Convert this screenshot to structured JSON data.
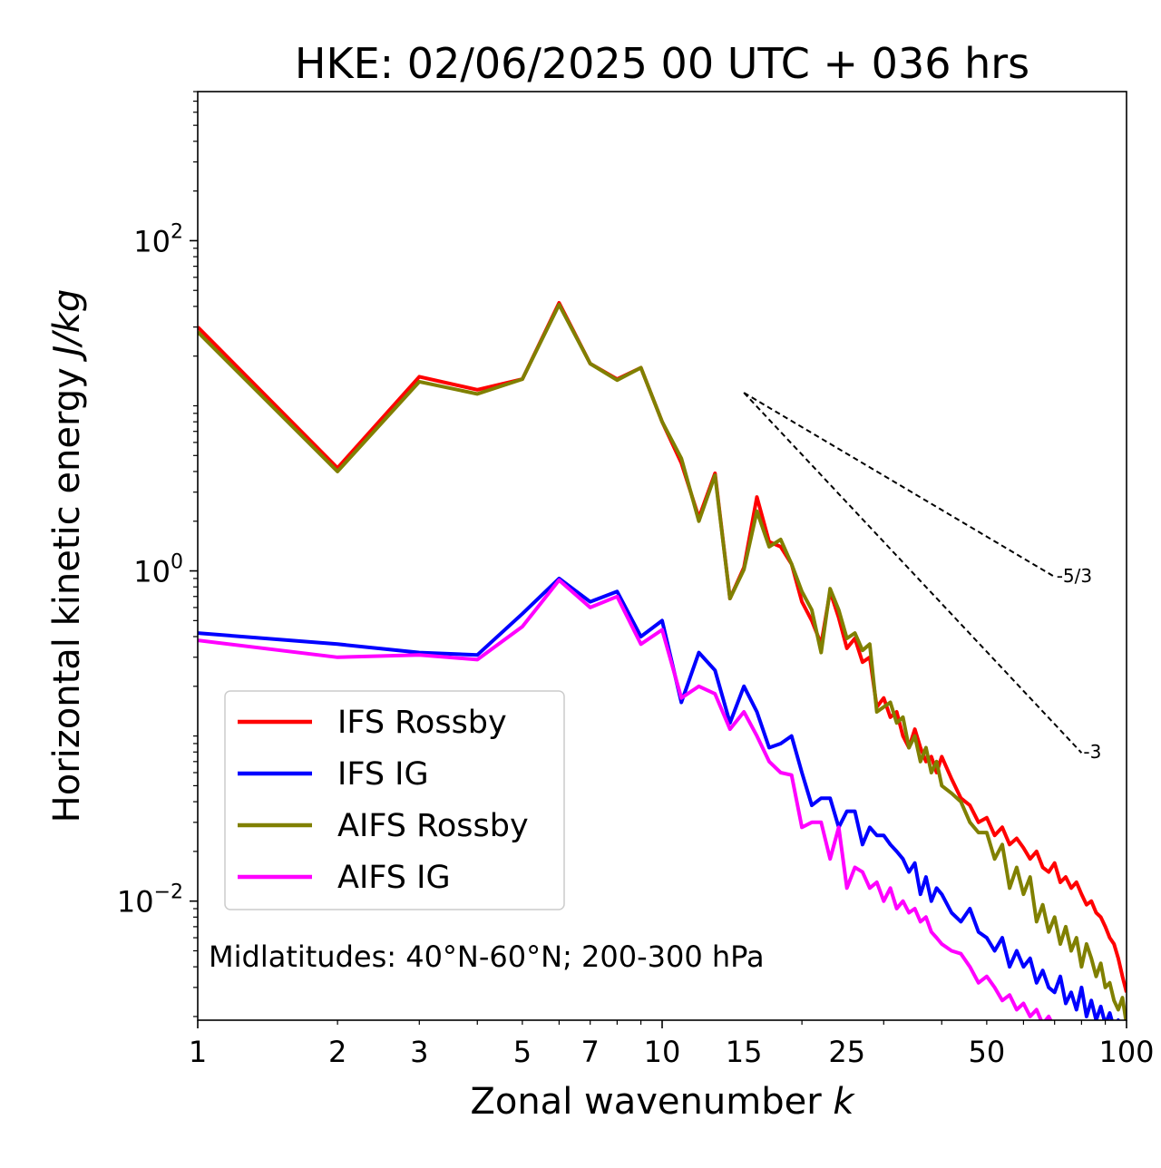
{
  "chart_data": {
    "type": "line",
    "title": "HKE: 02/06/2025 00 UTC + 036 hrs",
    "xlabel_main": "Zonal wavenumber ",
    "xlabel_var": "k",
    "ylabel_main": "Horizontal kinetic energy ",
    "ylabel_unit": "J/kg",
    "xscale": "log",
    "yscale": "log",
    "xlim": [
      1,
      100
    ],
    "ylim": [
      0.0019,
      800
    ],
    "xticks": [
      1,
      2,
      3,
      5,
      7,
      10,
      15,
      25,
      50,
      100
    ],
    "xtick_labels": [
      "1",
      "2",
      "3",
      "5",
      "7",
      "10",
      "15",
      "25",
      "50",
      "100"
    ],
    "yticks": [
      {
        "value": 0.01,
        "base": "10",
        "exp": "−2"
      },
      {
        "value": 1,
        "base": "10",
        "exp": "0"
      },
      {
        "value": 100,
        "base": "10",
        "exp": "2"
      }
    ],
    "annotation": "Midlatitudes: 40°N-60°N; 200-300 hPa",
    "legend_position": "lower-left",
    "reference_slopes": [
      {
        "label": "-5/3",
        "slope": -1.6667,
        "x_start": 15,
        "y_start": 12.0,
        "x_end": 70
      },
      {
        "label": "-3",
        "slope": -3,
        "x_start": 15,
        "y_start": 12.0,
        "x_end": 80
      }
    ],
    "series": [
      {
        "name": "IFS Rossby",
        "color": "#ff0000",
        "x": [
          1,
          2,
          3,
          4,
          5,
          6,
          7,
          8,
          9,
          10,
          11,
          12,
          13,
          14,
          15,
          16,
          17,
          18,
          19,
          20,
          21,
          22,
          23,
          24,
          25,
          26,
          27,
          28,
          29,
          30,
          31,
          32,
          33,
          34,
          35,
          36,
          37,
          38,
          39,
          40,
          42,
          44,
          46,
          48,
          50,
          52,
          54,
          56,
          58,
          60,
          62,
          64,
          66,
          68,
          70,
          72,
          74,
          76,
          78,
          80,
          82,
          84,
          86,
          88,
          90,
          92,
          94,
          96,
          98,
          100
        ],
        "y": [
          30,
          4.2,
          15,
          12.5,
          14.5,
          42,
          18,
          14.5,
          17,
          8,
          4.5,
          2.1,
          3.9,
          0.68,
          1.05,
          2.8,
          1.5,
          1.4,
          1.1,
          0.65,
          0.5,
          0.36,
          0.75,
          0.52,
          0.34,
          0.39,
          0.28,
          0.3,
          0.15,
          0.17,
          0.13,
          0.14,
          0.1,
          0.085,
          0.11,
          0.085,
          0.07,
          0.075,
          0.06,
          0.075,
          0.055,
          0.042,
          0.038,
          0.03,
          0.032,
          0.025,
          0.028,
          0.022,
          0.024,
          0.021,
          0.018,
          0.02,
          0.016,
          0.015,
          0.017,
          0.013,
          0.014,
          0.012,
          0.013,
          0.011,
          0.0095,
          0.01,
          0.0085,
          0.008,
          0.007,
          0.006,
          0.0055,
          0.0045,
          0.0035,
          0.0028
        ]
      },
      {
        "name": "IFS IG",
        "color": "#0000ff",
        "x": [
          1,
          2,
          3,
          4,
          5,
          6,
          7,
          8,
          9,
          10,
          11,
          12,
          13,
          14,
          15,
          16,
          17,
          18,
          19,
          20,
          21,
          22,
          23,
          24,
          25,
          26,
          27,
          28,
          29,
          30,
          31,
          32,
          33,
          34,
          35,
          36,
          37,
          38,
          39,
          40,
          42,
          44,
          46,
          48,
          50,
          52,
          54,
          56,
          58,
          60,
          62,
          64,
          66,
          68,
          70,
          72,
          74,
          76,
          78,
          80,
          82,
          84,
          86,
          88,
          90,
          92,
          94,
          96,
          98,
          100
        ],
        "y": [
          0.42,
          0.36,
          0.32,
          0.31,
          0.55,
          0.9,
          0.65,
          0.75,
          0.4,
          0.5,
          0.16,
          0.32,
          0.25,
          0.12,
          0.2,
          0.14,
          0.085,
          0.09,
          0.1,
          0.06,
          0.038,
          0.042,
          0.042,
          0.028,
          0.035,
          0.035,
          0.022,
          0.028,
          0.025,
          0.025,
          0.022,
          0.02,
          0.018,
          0.015,
          0.017,
          0.011,
          0.014,
          0.01,
          0.012,
          0.011,
          0.0085,
          0.0075,
          0.009,
          0.0065,
          0.006,
          0.005,
          0.006,
          0.004,
          0.005,
          0.004,
          0.0045,
          0.0032,
          0.0038,
          0.003,
          0.0028,
          0.0035,
          0.0024,
          0.0028,
          0.0022,
          0.003,
          0.002,
          0.0025,
          0.0019,
          0.0023,
          0.0018,
          0.0021,
          0.0017,
          0.0019,
          0.0016,
          0.0014
        ]
      },
      {
        "name": "AIFS Rossby",
        "color": "#808000",
        "x": [
          1,
          2,
          3,
          4,
          5,
          6,
          7,
          8,
          9,
          10,
          11,
          12,
          13,
          14,
          15,
          16,
          17,
          18,
          19,
          20,
          21,
          22,
          23,
          24,
          25,
          26,
          27,
          28,
          29,
          30,
          31,
          32,
          33,
          34,
          35,
          36,
          37,
          38,
          39,
          40,
          42,
          44,
          46,
          48,
          50,
          52,
          54,
          56,
          58,
          60,
          62,
          64,
          66,
          68,
          70,
          72,
          74,
          76,
          78,
          80,
          82,
          84,
          86,
          88,
          90,
          92,
          94,
          96,
          98,
          100
        ],
        "y": [
          28,
          4.0,
          14,
          11.8,
          14.5,
          41,
          18,
          14.3,
          17,
          8,
          4.8,
          2.0,
          3.8,
          0.68,
          1.02,
          2.3,
          1.4,
          1.55,
          1.1,
          0.75,
          0.58,
          0.32,
          0.78,
          0.58,
          0.39,
          0.42,
          0.33,
          0.36,
          0.14,
          0.15,
          0.16,
          0.12,
          0.13,
          0.085,
          0.1,
          0.07,
          0.085,
          0.06,
          0.07,
          0.05,
          0.045,
          0.04,
          0.03,
          0.026,
          0.026,
          0.018,
          0.022,
          0.012,
          0.016,
          0.011,
          0.014,
          0.0075,
          0.0095,
          0.0065,
          0.008,
          0.0055,
          0.007,
          0.005,
          0.006,
          0.004,
          0.0055,
          0.0045,
          0.0035,
          0.0042,
          0.003,
          0.0032,
          0.0025,
          0.0022,
          0.0026,
          0.0018
        ]
      },
      {
        "name": "AIFS IG",
        "color": "#ff00ff",
        "x": [
          1,
          2,
          3,
          4,
          5,
          6,
          7,
          8,
          9,
          10,
          11,
          12,
          13,
          14,
          15,
          16,
          17,
          18,
          19,
          20,
          21,
          22,
          23,
          24,
          25,
          26,
          27,
          28,
          29,
          30,
          31,
          32,
          33,
          34,
          35,
          36,
          37,
          38,
          39,
          40,
          42,
          44,
          46,
          48,
          50,
          52,
          54,
          56,
          58,
          60,
          62,
          64,
          66,
          68,
          70
        ],
        "y": [
          0.38,
          0.3,
          0.31,
          0.29,
          0.46,
          0.88,
          0.6,
          0.7,
          0.36,
          0.44,
          0.17,
          0.2,
          0.18,
          0.11,
          0.14,
          0.1,
          0.07,
          0.06,
          0.058,
          0.028,
          0.03,
          0.03,
          0.018,
          0.028,
          0.012,
          0.016,
          0.015,
          0.012,
          0.013,
          0.01,
          0.012,
          0.009,
          0.01,
          0.0085,
          0.009,
          0.0075,
          0.008,
          0.0065,
          0.006,
          0.0055,
          0.005,
          0.0048,
          0.004,
          0.0032,
          0.0035,
          0.003,
          0.0025,
          0.0027,
          0.0022,
          0.0024,
          0.002,
          0.0022,
          0.0018,
          0.002,
          0.0017
        ]
      }
    ]
  }
}
